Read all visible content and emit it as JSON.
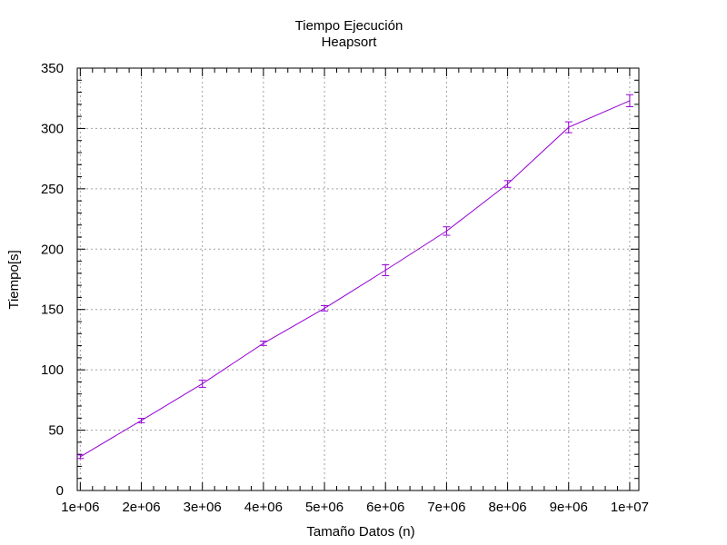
{
  "chart_data": {
    "type": "line",
    "title": "Tiempo Ejecución",
    "subtitle": "Heapsort",
    "xlabel": "Tamaño Datos (n)",
    "ylabel": "Tiempo[s]",
    "xlim": [
      950000,
      10150000
    ],
    "ylim": [
      0,
      350
    ],
    "grid": true,
    "x_ticks": [
      {
        "value": 1000000,
        "label": "1e+06"
      },
      {
        "value": 2000000,
        "label": "2e+06"
      },
      {
        "value": 3000000,
        "label": "3e+06"
      },
      {
        "value": 4000000,
        "label": "4e+06"
      },
      {
        "value": 5000000,
        "label": "5e+06"
      },
      {
        "value": 6000000,
        "label": "6e+06"
      },
      {
        "value": 7000000,
        "label": "7e+06"
      },
      {
        "value": 8000000,
        "label": "8e+06"
      },
      {
        "value": 9000000,
        "label": "9e+06"
      },
      {
        "value": 10000000,
        "label": "1e+07"
      }
    ],
    "y_ticks": [
      {
        "value": 0,
        "label": "0"
      },
      {
        "value": 50,
        "label": "50"
      },
      {
        "value": 100,
        "label": "100"
      },
      {
        "value": 150,
        "label": "150"
      },
      {
        "value": 200,
        "label": "200"
      },
      {
        "value": 250,
        "label": "250"
      },
      {
        "value": 300,
        "label": "300"
      },
      {
        "value": 350,
        "label": "350"
      }
    ],
    "series": [
      {
        "color": "#9400d3",
        "x": [
          1000000,
          2000000,
          3000000,
          4000000,
          5000000,
          6000000,
          7000000,
          8000000,
          9000000,
          10000000
        ],
        "y": [
          28,
          58,
          88.5,
          122,
          151,
          182.5,
          215,
          254,
          301,
          323
        ],
        "error": [
          1.5,
          1.8,
          3,
          1.8,
          2.2,
          4.5,
          3.5,
          2.8,
          4.5,
          5
        ]
      }
    ]
  }
}
